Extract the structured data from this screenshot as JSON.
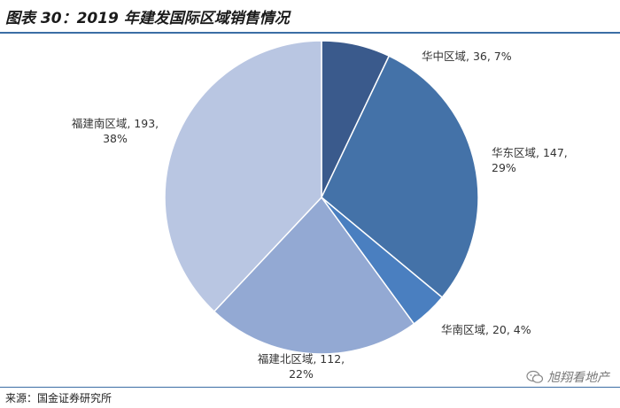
{
  "title": "图表 30：2019 年建发国际区域销售情况",
  "source": "来源：国金证券研究所",
  "watermark": "旭翔看地产",
  "chart_data": {
    "type": "pie",
    "title": "图表 30：2019 年建发国际区域销售情况",
    "slices": [
      {
        "label": "华中区域",
        "value": 36,
        "percent": "7%",
        "color": "#3a5a8c",
        "text": "华中区域, 36, 7%",
        "lines": [
          "华中区域, 36, 7%"
        ]
      },
      {
        "label": "华东区域",
        "value": 147,
        "percent": "29%",
        "color": "#4472a8",
        "text": "华东区域, 147, 29%",
        "lines": [
          "华东区域, 147,",
          "29%"
        ]
      },
      {
        "label": "华南区域",
        "value": 20,
        "percent": "4%",
        "color": "#4a7fc0",
        "text": "华南区域, 20, 4%",
        "lines": [
          "华南区域, 20, 4%"
        ]
      },
      {
        "label": "福建北区域",
        "value": 112,
        "percent": "22%",
        "color": "#93a9d3",
        "text": "福建北区域, 112, 22%",
        "lines": [
          "福建北区域, 112,",
          "22%"
        ]
      },
      {
        "label": "福建南区域",
        "value": 193,
        "percent": "38%",
        "color": "#b9c6e2",
        "text": "福建南区域, 193, 38%",
        "lines": [
          "福建南区域, 193,",
          "38%"
        ]
      }
    ]
  }
}
